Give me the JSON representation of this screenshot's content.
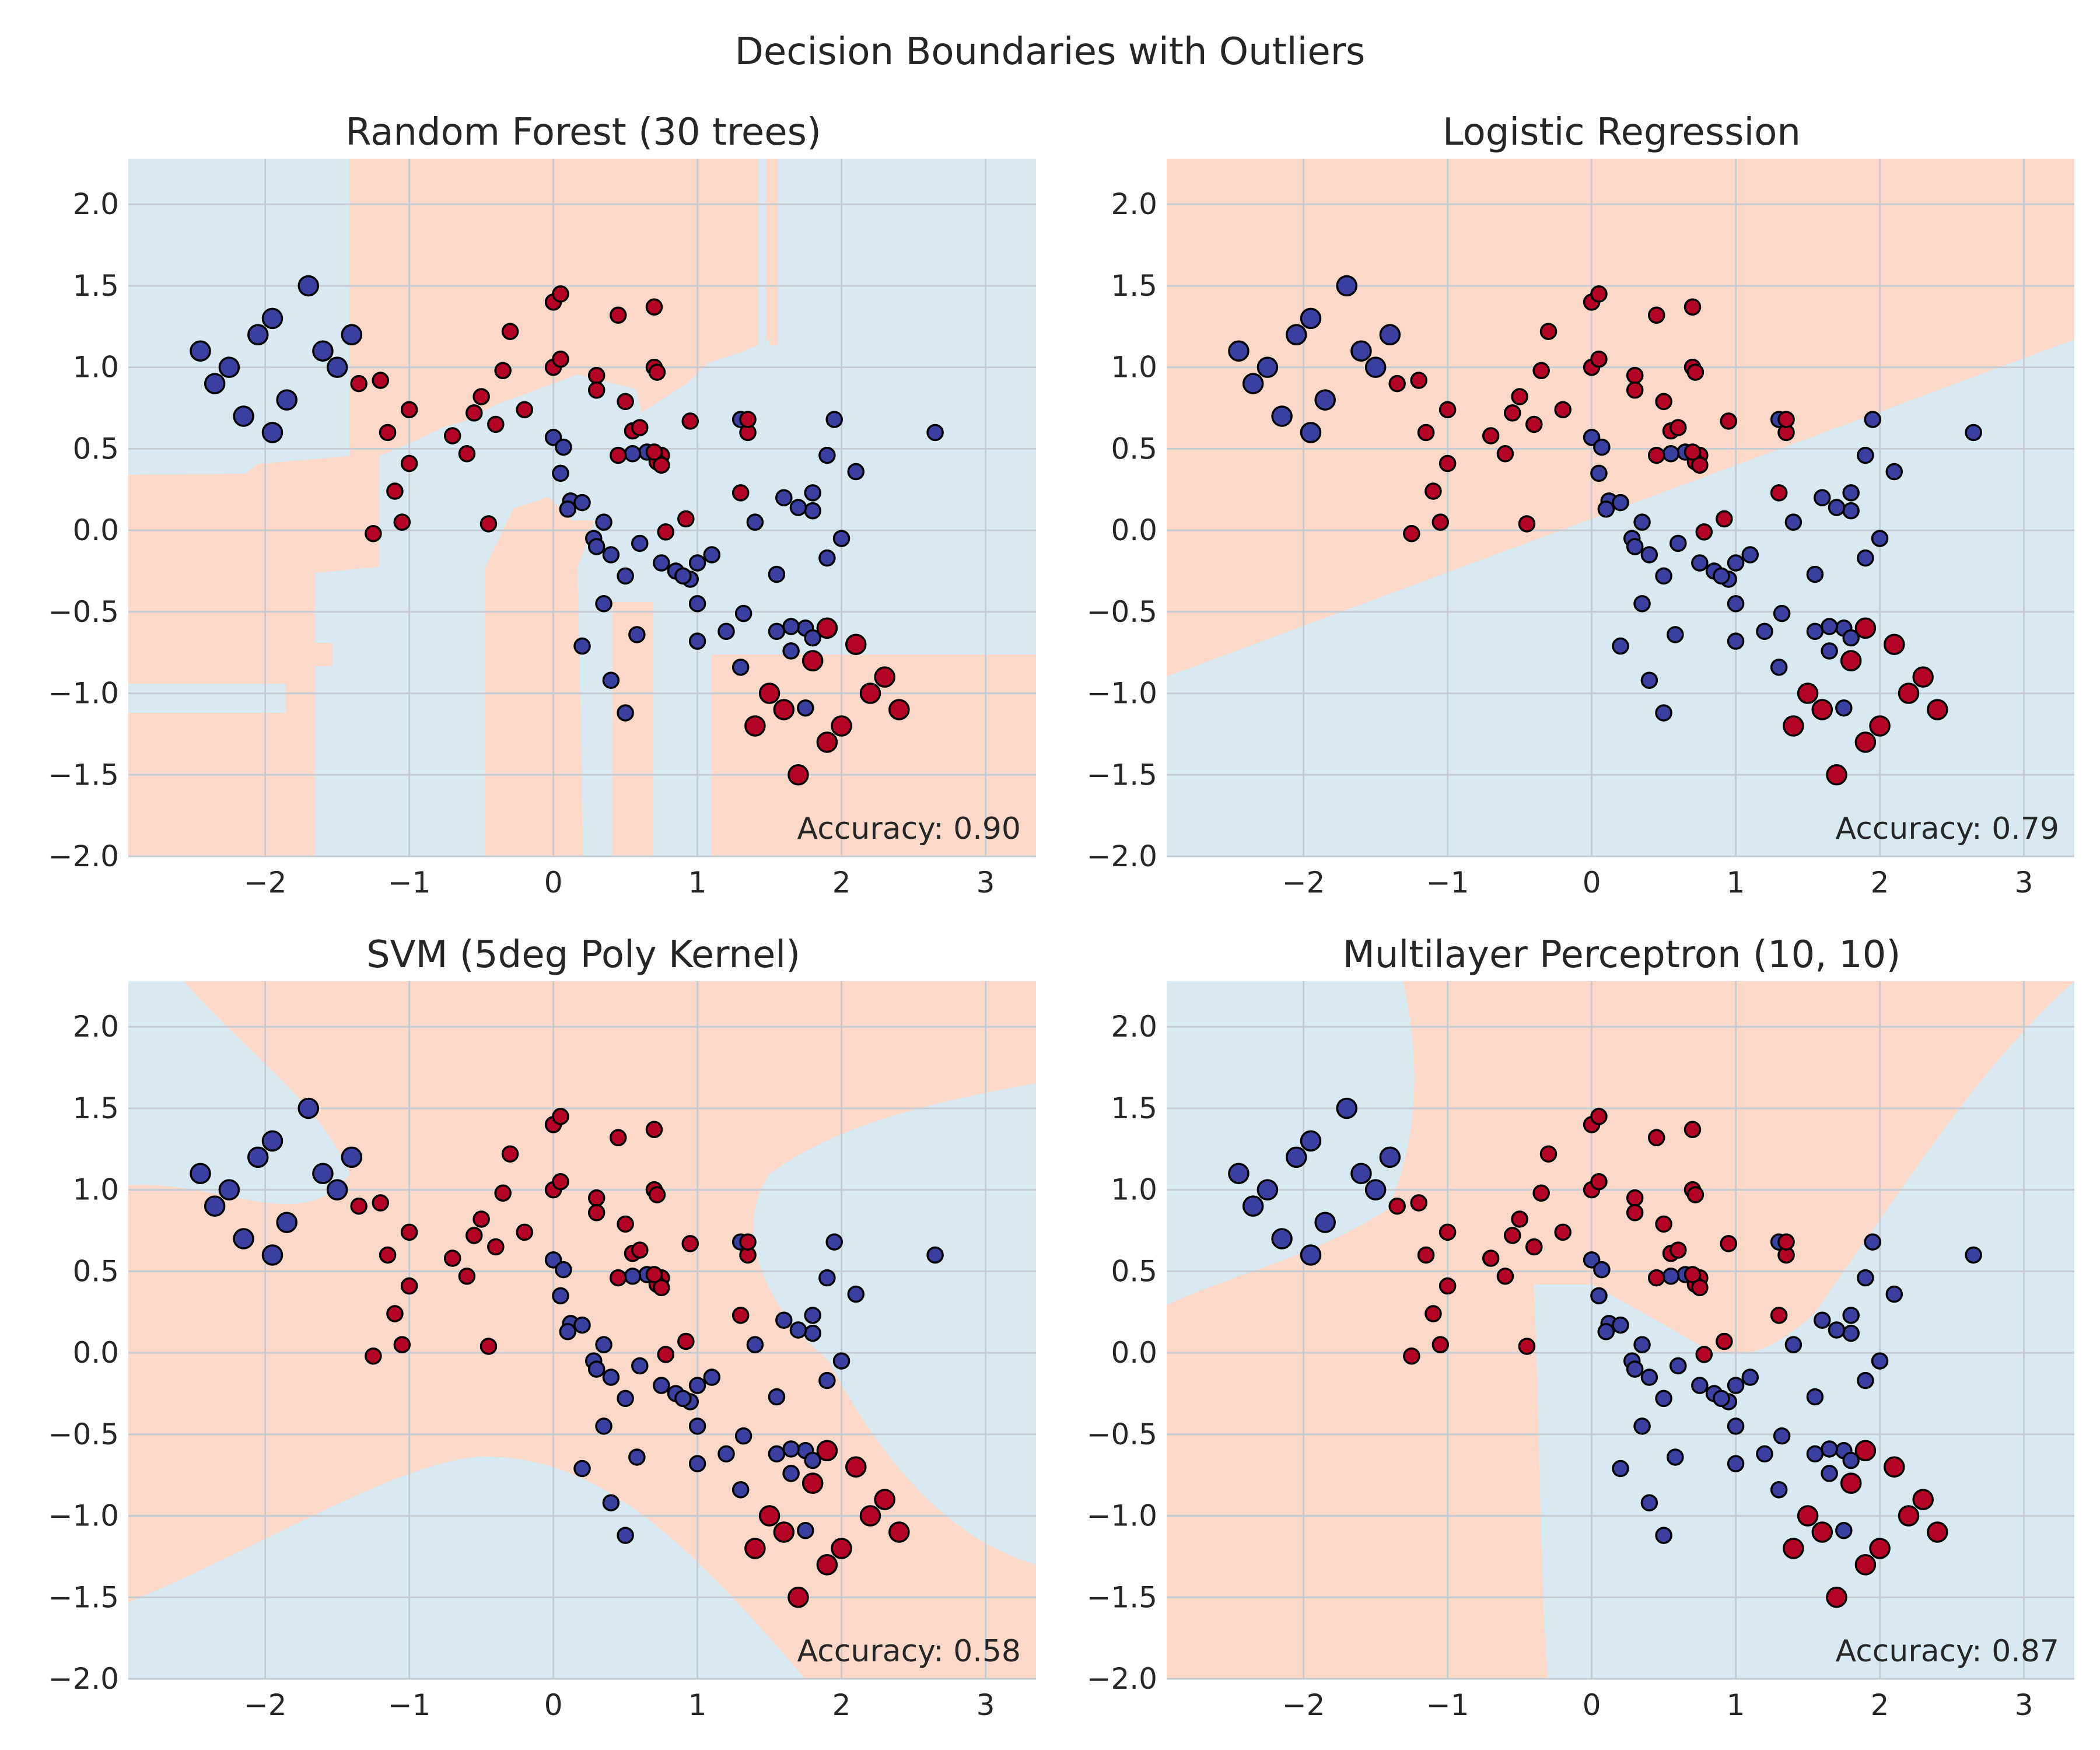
{
  "figure": {
    "suptitle": "Decision Boundaries with Outliers"
  },
  "colors": {
    "class0_point": "#3b3fa0",
    "class1_point": "#b40426",
    "region0": "#d8e9f2",
    "region1": "#fbd8c8",
    "point_edge": "#000000",
    "grid": "#c7ccd3"
  },
  "chart_data": [
    {
      "type": "scatter",
      "title": "Random Forest (30 trees)",
      "accuracy_label": "Accuracy: 0.90",
      "xlim": [
        -2.95,
        3.35
      ],
      "ylim": [
        -2.0,
        2.28
      ],
      "xticks": [
        "−2",
        "−1",
        "0",
        "1",
        "2",
        "3"
      ],
      "yticks": [
        "−2.0",
        "−1.5",
        "−1.0",
        "−0.5",
        "0.0",
        "0.5",
        "1.0",
        "1.5",
        "2.0"
      ],
      "grid": true
    },
    {
      "type": "scatter",
      "title": "Logistic Regression",
      "accuracy_label": "Accuracy: 0.79",
      "xlim": [
        -2.95,
        3.35
      ],
      "ylim": [
        -2.0,
        2.28
      ],
      "xticks": [
        "−2",
        "−1",
        "0",
        "1",
        "2",
        "3"
      ],
      "yticks": [
        "−2.0",
        "−1.5",
        "−1.0",
        "−0.5",
        "0.0",
        "0.5",
        "1.0",
        "1.5",
        "2.0"
      ],
      "grid": true
    },
    {
      "type": "scatter",
      "title": "SVM (5deg Poly Kernel)",
      "accuracy_label": "Accuracy: 0.58",
      "xlim": [
        -2.95,
        3.35
      ],
      "ylim": [
        -2.0,
        2.28
      ],
      "xticks": [
        "−2",
        "−1",
        "0",
        "1",
        "2",
        "3"
      ],
      "yticks": [
        "−2.0",
        "−1.5",
        "−1.0",
        "−0.5",
        "0.0",
        "0.5",
        "1.0",
        "1.5",
        "2.0"
      ],
      "grid": true
    },
    {
      "type": "scatter",
      "title": "Multilayer Perceptron (10, 10)",
      "accuracy_label": "Accuracy: 0.87",
      "xlim": [
        -2.95,
        3.35
      ],
      "ylim": [
        -2.0,
        2.28
      ],
      "xticks": [
        "−2",
        "−1",
        "0",
        "1",
        "2",
        "3"
      ],
      "yticks": [
        "−2.0",
        "−1.5",
        "−1.0",
        "−0.5",
        "0.0",
        "0.5",
        "1.0",
        "1.5",
        "2.0"
      ],
      "grid": true
    }
  ],
  "points": {
    "class0": [
      [
        0.12,
        0.18
      ],
      [
        0.35,
        0.05
      ],
      [
        0.28,
        -0.05
      ],
      [
        0.4,
        -0.15
      ],
      [
        0.3,
        -0.1
      ],
      [
        0.6,
        -0.08
      ],
      [
        0.75,
        -0.2
      ],
      [
        0.85,
        -0.25
      ],
      [
        0.95,
        -0.3
      ],
      [
        1.0,
        -0.2
      ],
      [
        0.9,
        -0.28
      ],
      [
        1.1,
        -0.15
      ],
      [
        0.5,
        -0.28
      ],
      [
        0.65,
        0.48
      ],
      [
        0.55,
        0.47
      ],
      [
        0.0,
        0.57
      ],
      [
        0.05,
        0.35
      ],
      [
        0.07,
        0.51
      ],
      [
        0.2,
        0.17
      ],
      [
        0.1,
        0.13
      ],
      [
        0.35,
        -0.45
      ],
      [
        0.58,
        -0.64
      ],
      [
        1.0,
        -0.45
      ],
      [
        1.2,
        -0.62
      ],
      [
        1.0,
        -0.68
      ],
      [
        1.32,
        -0.51
      ],
      [
        1.3,
        -0.84
      ],
      [
        0.4,
        -0.92
      ],
      [
        0.2,
        -0.71
      ],
      [
        0.5,
        -1.12
      ],
      [
        1.3,
        0.68
      ],
      [
        1.6,
        0.2
      ],
      [
        1.4,
        0.05
      ],
      [
        1.55,
        -0.27
      ],
      [
        1.8,
        0.12
      ],
      [
        1.7,
        0.14
      ],
      [
        1.9,
        0.46
      ],
      [
        1.8,
        0.23
      ],
      [
        1.95,
        0.68
      ],
      [
        2.1,
        0.36
      ],
      [
        1.9,
        -0.17
      ],
      [
        2.0,
        -0.05
      ],
      [
        1.55,
        -0.62
      ],
      [
        1.75,
        -0.6
      ],
      [
        1.65,
        -0.59
      ],
      [
        1.65,
        -0.74
      ],
      [
        1.8,
        -0.66
      ],
      [
        1.75,
        -1.09
      ],
      [
        2.65,
        0.6
      ]
    ],
    "class0_big": [
      [
        -2.45,
        1.1
      ],
      [
        -2.35,
        0.9
      ],
      [
        -2.25,
        1.0
      ],
      [
        -2.15,
        0.7
      ],
      [
        -2.05,
        1.2
      ],
      [
        -1.95,
        1.3
      ],
      [
        -1.95,
        0.6
      ],
      [
        -1.85,
        0.8
      ],
      [
        -1.7,
        1.5
      ],
      [
        -1.6,
        1.1
      ],
      [
        -1.5,
        1.0
      ],
      [
        -1.4,
        1.2
      ]
    ],
    "class1": [
      [
        0.0,
        1.4
      ],
      [
        0.05,
        1.45
      ],
      [
        0.0,
        1.0
      ],
      [
        0.05,
        1.05
      ],
      [
        -0.3,
        1.22
      ],
      [
        -0.35,
        0.98
      ],
      [
        -0.4,
        0.65
      ],
      [
        -0.2,
        0.74
      ],
      [
        -0.5,
        0.82
      ],
      [
        -0.55,
        0.72
      ],
      [
        -0.6,
        0.47
      ],
      [
        -0.7,
        0.58
      ],
      [
        -1.0,
        0.74
      ],
      [
        -1.2,
        0.92
      ],
      [
        -1.15,
        0.6
      ],
      [
        -1.35,
        0.9
      ],
      [
        -1.0,
        0.41
      ],
      [
        -1.1,
        0.24
      ],
      [
        -1.05,
        0.05
      ],
      [
        -1.25,
        -0.02
      ],
      [
        -0.45,
        0.04
      ],
      [
        0.3,
        0.95
      ],
      [
        0.3,
        0.86
      ],
      [
        0.5,
        0.79
      ],
      [
        0.45,
        1.32
      ],
      [
        0.7,
        1.37
      ],
      [
        0.7,
        1.0
      ],
      [
        0.72,
        0.97
      ],
      [
        0.45,
        0.46
      ],
      [
        0.55,
        0.61
      ],
      [
        0.6,
        0.63
      ],
      [
        0.75,
        0.46
      ],
      [
        0.72,
        0.42
      ],
      [
        0.75,
        0.4
      ],
      [
        0.95,
        0.67
      ],
      [
        0.92,
        0.07
      ],
      [
        0.78,
        -0.01
      ],
      [
        1.3,
        0.23
      ],
      [
        1.35,
        0.6
      ],
      [
        1.35,
        0.68
      ],
      [
        0.7,
        0.48
      ]
    ],
    "class1_big": [
      [
        1.4,
        -1.2
      ],
      [
        1.5,
        -1.0
      ],
      [
        1.6,
        -1.1
      ],
      [
        1.7,
        -1.5
      ],
      [
        1.8,
        -0.8
      ],
      [
        1.9,
        -0.6
      ],
      [
        1.9,
        -1.3
      ],
      [
        2.0,
        -1.2
      ],
      [
        2.1,
        -0.7
      ],
      [
        2.2,
        -1.0
      ],
      [
        2.3,
        -0.9
      ],
      [
        2.4,
        -1.1
      ]
    ]
  }
}
